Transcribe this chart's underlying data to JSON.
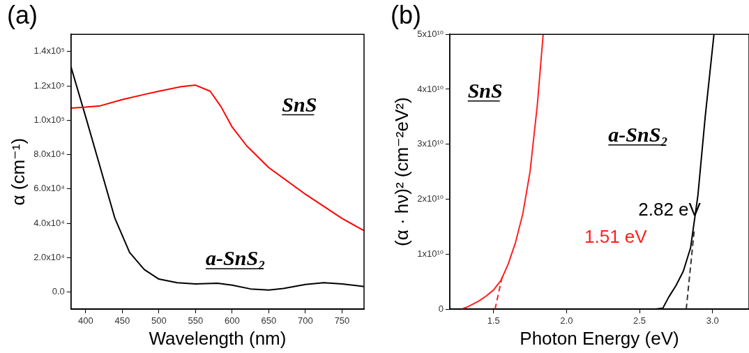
{
  "chart_data": [
    {
      "type": "line",
      "title": "(a)",
      "xlabel": "Wavelength (nm)",
      "ylabel": "α (cm⁻¹)",
      "grid": false,
      "legend": false,
      "marker": "none",
      "xlim": [
        380,
        780
      ],
      "xticks": [
        400,
        450,
        500,
        550,
        600,
        650,
        700,
        750
      ],
      "ylim": [
        -10000,
        150000
      ],
      "yticks": [
        {
          "value": 0,
          "label": "0.0"
        },
        {
          "value": 20000,
          "label": "2.0x10⁴"
        },
        {
          "value": 40000,
          "label": "4.0x10⁴"
        },
        {
          "value": 60000,
          "label": "6.0x10⁴"
        },
        {
          "value": 80000,
          "label": "8.0x10⁴"
        },
        {
          "value": 100000,
          "label": "1.0x10⁵"
        },
        {
          "value": 120000,
          "label": "1.2x10⁵"
        },
        {
          "value": 140000,
          "label": "1.4x10⁵"
        }
      ],
      "series": [
        {
          "name": "SnS",
          "color": "#ff0000",
          "x": [
            380,
            400,
            420,
            450,
            480,
            500,
            530,
            550,
            570,
            585,
            600,
            620,
            650,
            700,
            750,
            780
          ],
          "values": [
            107000,
            107600,
            108400,
            112000,
            115000,
            116900,
            119500,
            120400,
            116900,
            107700,
            96000,
            85000,
            72400,
            56900,
            42800,
            35700
          ]
        },
        {
          "name": "a-SnS₂",
          "color": "#000000",
          "x": [
            380,
            400,
            420,
            440,
            460,
            480,
            500,
            525,
            550,
            580,
            600,
            625,
            650,
            670,
            700,
            725,
            750,
            780
          ],
          "values": [
            131000,
            102000,
            72400,
            42800,
            23000,
            13100,
            7500,
            5400,
            4700,
            5100,
            4000,
            1800,
            1100,
            2100,
            4400,
            5400,
            4700,
            3200
          ]
        }
      ]
    },
    {
      "type": "line",
      "title": "(b)",
      "xlabel": "Photon Energy (eV)",
      "ylabel": "(α · hν)² (cm⁻²eV²)",
      "grid": false,
      "legend": false,
      "marker": "none",
      "xlim": [
        1.2,
        3.25
      ],
      "xticks": [
        1.5,
        {
          "value": 2,
          "label": "2.0"
        },
        2.5,
        {
          "value": 3,
          "label": "3.0"
        }
      ],
      "ylim": [
        0,
        50000000000
      ],
      "yticks": [
        0,
        {
          "value": 10000000000,
          "label": "1x10¹⁰"
        },
        {
          "value": 20000000000,
          "label": "2x10¹⁰"
        },
        {
          "value": 30000000000,
          "label": "3x10¹⁰"
        },
        {
          "value": 40000000000,
          "label": "4x10¹⁰"
        },
        {
          "value": 50000000000,
          "label": "5x10¹⁰"
        }
      ],
      "annotations": [
        "1.51 eV",
        "2.82 eV"
      ],
      "series": [
        {
          "name": "SnS",
          "color": "#ff2020",
          "x": [
            1.28,
            1.32,
            1.4,
            1.45,
            1.5,
            1.55,
            1.6,
            1.65,
            1.7,
            1.75,
            1.8,
            1.84
          ],
          "values": [
            0,
            400000000,
            1500000000,
            2400000000,
            3500000000,
            5200000000,
            8200000000,
            12100000000,
            17300000000,
            25000000000,
            37200000000,
            50000000000
          ]
        },
        {
          "color": "#ff2020",
          "line_style": "dashed",
          "x": [
            1.51,
            1.56
          ],
          "values": [
            0,
            6000000000
          ]
        },
        {
          "name": "a-SnS₂",
          "color": "#000000",
          "x": [
            2.6,
            2.66,
            2.7,
            2.75,
            2.8,
            2.85,
            2.9,
            2.95,
            3.01
          ],
          "values": [
            0,
            200000000,
            2200000000,
            4300000000,
            6900000000,
            11200000000,
            20700000000,
            35000000000,
            50000000000
          ]
        },
        {
          "color": "#333333",
          "line_style": "dashed",
          "x": [
            2.82,
            2.876
          ],
          "values": [
            0,
            14700000000
          ]
        }
      ]
    }
  ]
}
